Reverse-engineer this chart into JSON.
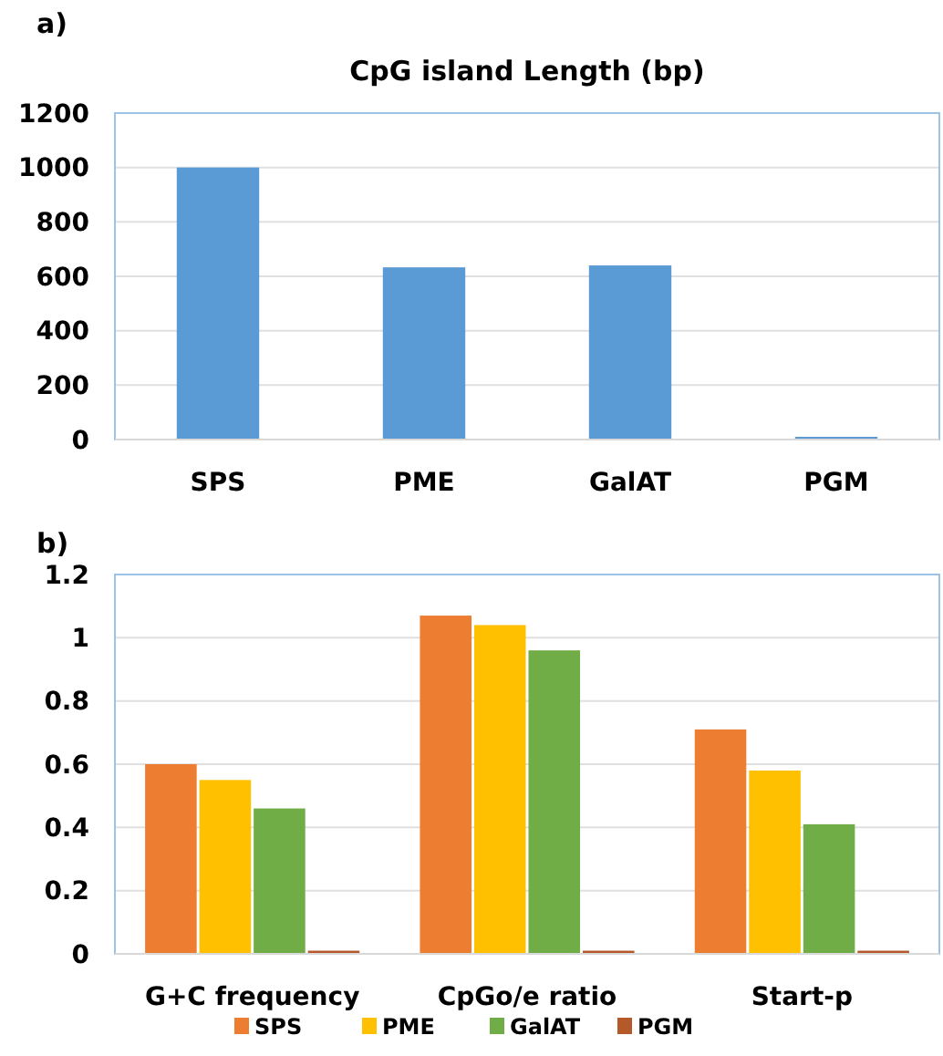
{
  "chart_data": [
    {
      "type": "bar",
      "title": "CpG island Length (bp)",
      "annotations": [
        "a)"
      ],
      "categories": [
        "SPS",
        "PME",
        "GalAT",
        "PGM"
      ],
      "values": [
        1000,
        633,
        640,
        10
      ],
      "color": "#5b9bd5",
      "ylim": [
        0,
        1200
      ],
      "yticks": [
        0,
        200,
        400,
        600,
        800,
        1000,
        1200
      ],
      "grid": "y"
    },
    {
      "type": "bar",
      "annotations": [
        "b)"
      ],
      "categories": [
        "G+C frequency",
        "CpGo/e ratio",
        "Start-p"
      ],
      "series": [
        {
          "name": "SPS",
          "color": "#ed7d31",
          "values": [
            0.6,
            1.07,
            0.71
          ]
        },
        {
          "name": "PME",
          "color": "#ffc000",
          "values": [
            0.55,
            1.04,
            0.58
          ]
        },
        {
          "name": "GalAT",
          "color": "#70ad47",
          "values": [
            0.46,
            0.96,
            0.41
          ]
        },
        {
          "name": "PGM",
          "color": "#b5582a",
          "values": [
            0.01,
            0.01,
            0.01
          ]
        }
      ],
      "ylim": [
        0,
        1.2
      ],
      "yticks": [
        0,
        0.2,
        0.4,
        0.6,
        0.8,
        1,
        {
          "value": 1.2,
          "label": "1.2"
        }
      ],
      "grid": "y",
      "legend": "bottom"
    }
  ]
}
